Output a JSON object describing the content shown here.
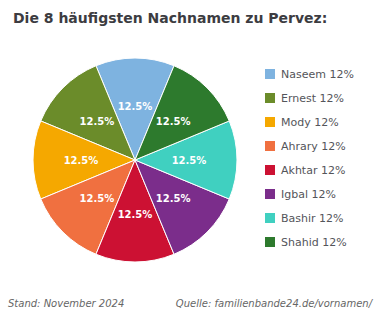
{
  "chart_data": {
    "type": "pie",
    "title": "Die 8 häufigsten Nachnamen zu Pervez:",
    "categories": [
      "Naseem 12%",
      "Ernest 12%",
      "Mody 12%",
      "Ahrary 12%",
      "Akhtar 12%",
      "Igbal 12%",
      "Bashir 12%",
      "Shahid 12%"
    ],
    "values": [
      12.5,
      12.5,
      12.5,
      12.5,
      12.5,
      12.5,
      12.5,
      12.5
    ],
    "value_labels": [
      "12.5%",
      "12.5%",
      "12.5%",
      "12.5%",
      "12.5%",
      "12.5%",
      "12.5%",
      "12.5%"
    ],
    "data_labels": true,
    "colors": [
      "#7eb3e0",
      "#6b8c2a",
      "#f5a800",
      "#f07040",
      "#cc1133",
      "#7b2d8b",
      "#40d0c0",
      "#2d7a2d"
    ],
    "legend": "right",
    "annotations": [
      "Stand: November 2024",
      "Quelle: familienbande24.de/vornamen/"
    ]
  }
}
